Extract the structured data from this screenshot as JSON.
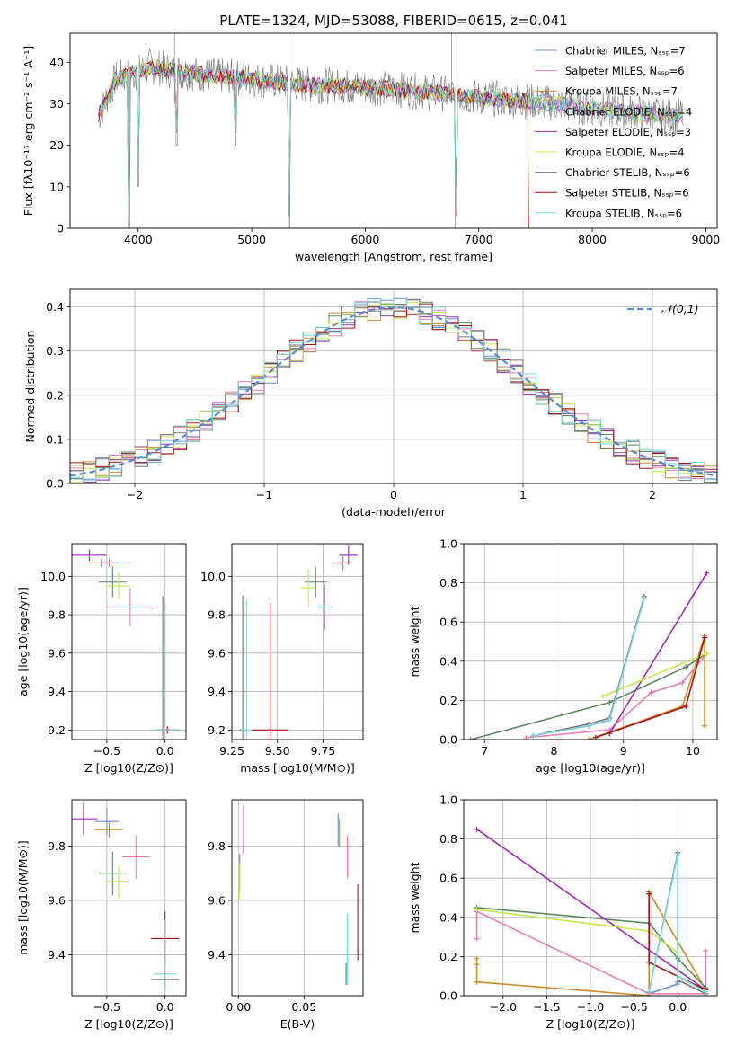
{
  "title": "PLATE=1324, MJD=53088, FIBERID=0615, z=0.041",
  "colors": [
    "#5a7fcc",
    "#e377c2",
    "#b8860b",
    "#2e7d32",
    "#8e24aa",
    "#cddc39",
    "#555555",
    "#b71c1c",
    "#80deea"
  ],
  "colors_lines": [
    "#6b8fd6",
    "#e67fb8",
    "#d08a2c",
    "#5a8a62",
    "#9a2fb3",
    "#c5e84d",
    "#777777",
    "#a31515",
    "#7fd7de"
  ],
  "chart_data": [
    {
      "id": "spectrum",
      "type": "line",
      "xlabel": "wavelength [Angstrom, rest frame]",
      "ylabel": "Flux [fλ10⁻¹⁷ erg cm⁻² s⁻¹ A⁻¹]",
      "xlim": [
        3400,
        9100
      ],
      "ylim": [
        0,
        47
      ],
      "xticks": [
        4000,
        5000,
        6000,
        7000,
        8000,
        9000
      ],
      "yticks": [
        0,
        10,
        20,
        30,
        40
      ],
      "legend": [
        "Chabrier MILES, N_SSP=7",
        "Salpeter MILES, N_SSP=6",
        "Kroupa MILES, N_SSP=7",
        "Chabrier ELODIE, N_SSP=4",
        "Salpeter ELODIE, N_SSP=3",
        "Kroupa ELODIE, N_SSP=4",
        "Chabrier STELIB, N_SSP=6",
        "Salpeter STELIB, N_SSP=6",
        "Kroupa STELIB, N_SSP=6"
      ],
      "continuum": {
        "x": [
          3650,
          3800,
          3950,
          4100,
          4300,
          4600,
          5000,
          5500,
          6000,
          6500,
          7000,
          7500,
          8000,
          8500,
          8800
        ],
        "y": [
          27,
          36,
          37,
          39,
          38,
          37,
          36,
          34.5,
          34,
          33,
          31.5,
          30.5,
          29,
          27.5,
          27
        ]
      },
      "dips": [
        {
          "x": 3920,
          "y": 0
        },
        {
          "x": 4000,
          "y": 10
        },
        {
          "x": 4340,
          "y": 20
        },
        {
          "x": 4860,
          "y": 20
        },
        {
          "x": 5330,
          "y": 0
        },
        {
          "x": 6800,
          "y": 0
        }
      ]
    },
    {
      "id": "residuals",
      "type": "line",
      "xlabel": "(data-model)/error",
      "ylabel": "Normed distribution",
      "xlim": [
        -2.5,
        2.5
      ],
      "ylim": [
        0,
        0.44
      ],
      "xticks": [
        -2,
        -1,
        0,
        1,
        2
      ],
      "yticks": [
        0.0,
        0.1,
        0.2,
        0.3,
        0.4
      ],
      "legend": [
        "N(0,1)"
      ]
    },
    {
      "id": "age_vs_Z",
      "type": "scatter",
      "xlabel": "Z [log10(Z/Z⊙)]",
      "ylabel": "age  [log10(age/yr)]",
      "xlim": [
        -0.8,
        0.18
      ],
      "ylim": [
        9.15,
        10.17
      ],
      "xticks": [
        -0.5,
        0.0
      ],
      "yticks": [
        9.2,
        9.4,
        9.6,
        9.8,
        10.0
      ],
      "points": [
        {
          "x": -0.55,
          "y": 10.07,
          "xe": 0.15,
          "ye": 0.02
        },
        {
          "x": -0.3,
          "y": 9.84,
          "xe": 0.2,
          "ye": 0.1
        },
        {
          "x": -0.48,
          "y": 10.07,
          "xe": 0.18,
          "ye": 0.02
        },
        {
          "x": -0.45,
          "y": 9.97,
          "xe": 0.12,
          "ye": 0.08
        },
        {
          "x": -0.65,
          "y": 10.11,
          "xe": 0.15,
          "ye": 0.03
        },
        {
          "x": -0.4,
          "y": 9.95,
          "xe": 0.1,
          "ye": 0.07
        },
        {
          "x": -0.02,
          "y": 9.2,
          "xe": 0.06,
          "ye": 0.7
        },
        {
          "x": 0.02,
          "y": 9.2,
          "xe": 0.1,
          "ye": 0.02
        },
        {
          "x": 0.0,
          "y": 9.2,
          "xe": 0.12,
          "ye": 0.66
        }
      ]
    },
    {
      "id": "age_vs_mass",
      "type": "scatter",
      "xlabel": "mass [log10(M/M⊙)]",
      "ylabel": "",
      "xlim": [
        9.25,
        9.97
      ],
      "ylim": [
        9.15,
        10.17
      ],
      "xticks": [
        9.25,
        9.5,
        9.75
      ],
      "yticks": [
        9.2,
        9.4,
        9.6,
        9.8,
        10.0
      ],
      "points": [
        {
          "x": 9.86,
          "y": 10.07,
          "xe": 0.05,
          "ye": 0.04
        },
        {
          "x": 9.76,
          "y": 9.84,
          "xe": 0.04,
          "ye": 0.12
        },
        {
          "x": 9.85,
          "y": 10.07,
          "xe": 0.05,
          "ye": 0.02
        },
        {
          "x": 9.71,
          "y": 9.97,
          "xe": 0.06,
          "ye": 0.08
        },
        {
          "x": 9.89,
          "y": 10.11,
          "xe": 0.05,
          "ye": 0.05
        },
        {
          "x": 9.67,
          "y": 9.94,
          "xe": 0.04,
          "ye": 0.1
        },
        {
          "x": 9.31,
          "y": 9.2,
          "xe": 0.02,
          "ye": 0.7
        },
        {
          "x": 9.46,
          "y": 9.2,
          "xe": 0.1,
          "ye": 0.66
        },
        {
          "x": 9.33,
          "y": 9.2,
          "xe": 0.03,
          "ye": 0.68
        }
      ]
    },
    {
      "id": "mw_vs_age",
      "type": "line",
      "xlabel": "age  [log10(age/yr)]",
      "ylabel": "mass weight",
      "xlim": [
        6.7,
        10.35
      ],
      "ylim": [
        0,
        1.0
      ],
      "xticks": [
        7,
        8,
        9,
        10
      ],
      "yticks": [
        0.0,
        0.2,
        0.4,
        0.6,
        0.8,
        1.0
      ],
      "series": [
        {
          "x": [
            7.7,
            8.5,
            8.8,
            9.3
          ],
          "y": [
            0.02,
            0.07,
            0.1,
            0.73
          ]
        },
        {
          "x": [
            7.6,
            8.8,
            9.4,
            9.85,
            10.2
          ],
          "y": [
            0.01,
            0.05,
            0.24,
            0.29,
            0.44
          ]
        },
        {
          "x": [
            8.5,
            9.85,
            10.17,
            10.17
          ],
          "y": [
            0.0,
            0.17,
            0.53,
            0.07
          ]
        },
        {
          "x": [
            6.8,
            8.8,
            9.9,
            10.2
          ],
          "y": [
            0.0,
            0.19,
            0.37,
            0.44
          ]
        },
        {
          "x": [
            8.8,
            10.2
          ],
          "y": [
            0.03,
            0.85
          ]
        },
        {
          "x": [
            8.7,
            10.2
          ],
          "y": [
            0.22,
            0.44
          ]
        },
        {
          "x": [
            7.7,
            8.5,
            8.8,
            9.3
          ],
          "y": [
            0.02,
            0.08,
            0.11,
            0.73
          ]
        },
        {
          "x": [
            8.6,
            9.9,
            10.17
          ],
          "y": [
            0.01,
            0.17,
            0.52
          ]
        },
        {
          "x": [
            7.7,
            8.5,
            8.8,
            9.3
          ],
          "y": [
            0.02,
            0.07,
            0.1,
            0.72
          ]
        }
      ]
    },
    {
      "id": "mass_vs_Z",
      "type": "scatter",
      "xlabel": "Z [log10(Z/Z⊙)]",
      "ylabel": "mass [log10(M/M⊙)]",
      "xlim": [
        -0.8,
        0.18
      ],
      "ylim": [
        9.25,
        9.97
      ],
      "xticks": [
        -0.5,
        0.0
      ],
      "yticks": [
        9.4,
        9.6,
        9.8
      ],
      "points": [
        {
          "x": -0.5,
          "y": 9.89,
          "xe": 0.1,
          "ye": 0.05
        },
        {
          "x": -0.25,
          "y": 9.76,
          "xe": 0.12,
          "ye": 0.08
        },
        {
          "x": -0.48,
          "y": 9.86,
          "xe": 0.12,
          "ye": 0.03
        },
        {
          "x": -0.45,
          "y": 9.7,
          "xe": 0.12,
          "ye": 0.08
        },
        {
          "x": -0.7,
          "y": 9.9,
          "xe": 0.12,
          "ye": 0.06
        },
        {
          "x": -0.4,
          "y": 9.67,
          "xe": 0.1,
          "ye": 0.06
        },
        {
          "x": 0.0,
          "y": 9.31,
          "xe": 0.12,
          "ye": 0.03
        },
        {
          "x": 0.0,
          "y": 9.46,
          "xe": 0.12,
          "ye": 0.1
        },
        {
          "x": 0.0,
          "y": 9.33,
          "xe": 0.1,
          "ye": 0.2
        }
      ]
    },
    {
      "id": "mass_vs_EBV",
      "type": "scatter",
      "xlabel": "E(B-V)",
      "ylabel": "",
      "xlim": [
        -0.005,
        0.095
      ],
      "ylim": [
        9.25,
        9.97
      ],
      "xticks": [
        0.0,
        0.05
      ],
      "yticks": [
        9.4,
        9.6,
        9.8
      ],
      "points": [
        {
          "x": 0.076,
          "y": 9.86,
          "xe": 0,
          "ye": 0.06
        },
        {
          "x": 0.083,
          "y": 9.76,
          "xe": 0,
          "ye": 0.08
        },
        {
          "x": 0.077,
          "y": 9.85,
          "xe": 0,
          "ye": 0.05
        },
        {
          "x": 0.001,
          "y": 9.7,
          "xe": 0,
          "ye": 0.07
        },
        {
          "x": 0.004,
          "y": 9.86,
          "xe": 0,
          "ye": 0.09
        },
        {
          "x": 0.001,
          "y": 9.67,
          "xe": 0,
          "ye": 0.07
        },
        {
          "x": 0.082,
          "y": 9.33,
          "xe": 0,
          "ye": 0.04
        },
        {
          "x": 0.091,
          "y": 9.52,
          "xe": 0,
          "ye": 0.14
        },
        {
          "x": 0.083,
          "y": 9.42,
          "xe": 0,
          "ye": 0.13
        }
      ]
    },
    {
      "id": "mw_vs_Z",
      "type": "line",
      "xlabel": "Z [log10(Z/Z⊙)]",
      "ylabel": "mass weight",
      "xlim": [
        -2.45,
        0.45
      ],
      "ylim": [
        0,
        1.0
      ],
      "xticks": [
        -2.0,
        -1.5,
        -1.0,
        -0.5,
        0.0
      ],
      "yticks": [
        0.0,
        0.2,
        0.4,
        0.6,
        0.8,
        1.0
      ],
      "series": [
        {
          "x": [
            -0.33,
            0.0,
            0.0,
            0.0
          ],
          "y": [
            0.01,
            0.06,
            0.73,
            0.07
          ]
        },
        {
          "x": [
            -2.3,
            -2.3,
            -0.33,
            0.32,
            0.32
          ],
          "y": [
            0.29,
            0.43,
            0.01,
            0.01,
            0.23
          ]
        },
        {
          "x": [
            -2.3,
            -2.3,
            -2.3,
            -0.33,
            -0.33,
            0.32
          ],
          "y": [
            0.19,
            0.16,
            0.07,
            0.0,
            0.53,
            0.03
          ]
        },
        {
          "x": [
            -2.3,
            -0.33,
            0.0,
            0.32
          ],
          "y": [
            0.45,
            0.37,
            0.19,
            0.04
          ]
        },
        {
          "x": [
            -2.3,
            0.32
          ],
          "y": [
            0.85,
            0.03
          ]
        },
        {
          "x": [
            -2.3,
            -0.33,
            0.0
          ],
          "y": [
            0.44,
            0.33,
            0.22
          ]
        },
        {
          "x": [
            -0.33,
            0.0,
            0.0,
            0.32
          ],
          "y": [
            0.02,
            0.73,
            0.08,
            0.01
          ]
        },
        {
          "x": [
            -0.33,
            -0.33,
            0.32
          ],
          "y": [
            0.52,
            0.17,
            0.03
          ]
        },
        {
          "x": [
            -0.33,
            0.0,
            0.0,
            0.32
          ],
          "y": [
            0.02,
            0.72,
            0.1,
            0.02
          ]
        }
      ]
    }
  ]
}
